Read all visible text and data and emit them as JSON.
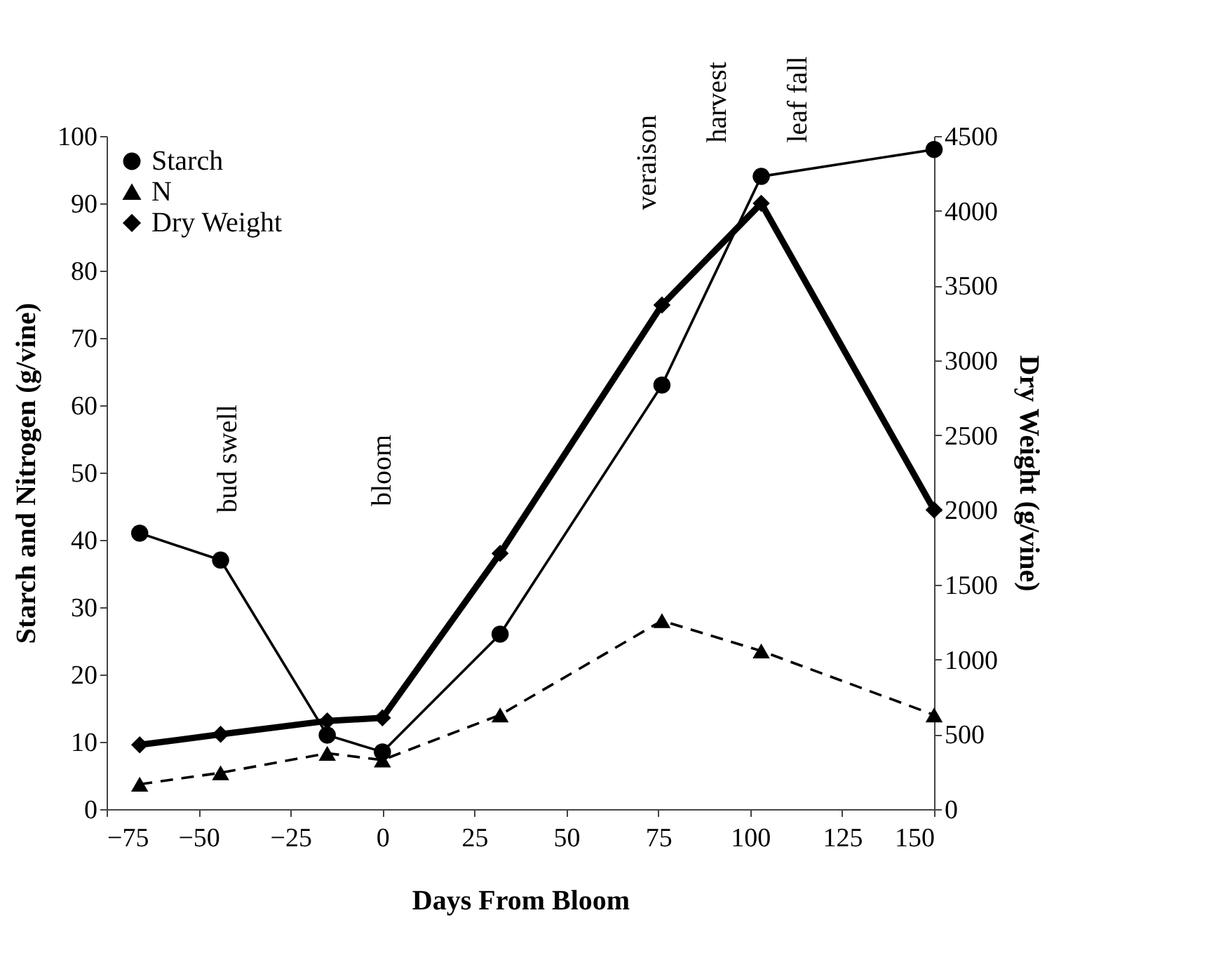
{
  "chart_data": {
    "type": "line",
    "xlabel": "Days From Bloom",
    "ylabel": "Starch and Nitrogen (g/vine)",
    "y2label": "Dry Weight (g/vine)",
    "x": [
      -66,
      -44,
      -15,
      0,
      32,
      76,
      103,
      150
    ],
    "series": [
      {
        "name": "Starch",
        "color": "#000000",
        "marker": "circle",
        "line_style": "solid",
        "values": [
          41,
          37,
          11,
          8.5,
          26,
          63,
          94,
          98
        ]
      },
      {
        "name": "N",
        "color": "#000000",
        "marker": "triangle",
        "line_style": "dashed",
        "values": [
          3.7,
          5.4,
          8.3,
          7.3,
          14,
          28,
          23.5,
          14
        ]
      },
      {
        "name": "Dry Weight",
        "color": "#000000",
        "marker": "diamond",
        "line_style": "solid",
        "axis": "y2",
        "values": [
          430,
          500,
          590,
          610,
          1710,
          3370,
          4050,
          2000
        ]
      }
    ],
    "xlim": [
      -75,
      150
    ],
    "xticks": [
      -75,
      -50,
      -25,
      0,
      25,
      50,
      75,
      100,
      125,
      150
    ],
    "ylim": [
      0,
      100
    ],
    "yticks": [
      0,
      10,
      20,
      30,
      40,
      50,
      60,
      70,
      80,
      90,
      100
    ],
    "y2lim": [
      0,
      4500
    ],
    "y2ticks": [
      0,
      500,
      1000,
      1500,
      2000,
      2500,
      3000,
      3500,
      4000,
      4500
    ],
    "annotations": [
      "bud swell",
      "bloom",
      "veraison",
      "harvest",
      "leaf fall"
    ],
    "legend": "top left",
    "grid": false
  }
}
